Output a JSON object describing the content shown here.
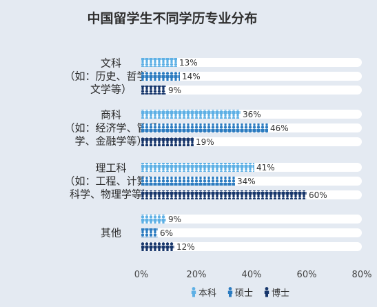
{
  "chart_data": {
    "type": "bar",
    "orientation": "horizontal",
    "title": "中国留学生不同学历专业分布",
    "categories": [
      [
        "文科",
        "（如：历史、哲学、",
        "文学等）"
      ],
      [
        "商科",
        "（如：经济学、管理",
        "学、金融学等）"
      ],
      [
        "理工科",
        "（如：工程、计算机",
        "科学、物理学等）"
      ],
      [
        "其他"
      ]
    ],
    "series": [
      {
        "name": "本科",
        "color": "#5eb0e5",
        "values": [
          13,
          36,
          41,
          9
        ],
        "labels": [
          "13%",
          "36%",
          "41%",
          "9%"
        ]
      },
      {
        "name": "硕士",
        "color": "#2b7bc0",
        "values": [
          14,
          46,
          34,
          6
        ],
        "labels": [
          "14%",
          "46%",
          "34%",
          "6%"
        ]
      },
      {
        "name": "博士",
        "color": "#17366b",
        "values": [
          9,
          19,
          60,
          12
        ],
        "labels": [
          "9%",
          "19%",
          "60%",
          "12%"
        ]
      }
    ],
    "xlim": [
      0,
      80
    ],
    "xticks": [
      "0%",
      "20%",
      "40%",
      "60%",
      "80%"
    ],
    "legend_position": "bottom-right",
    "track_color": "#ffffff",
    "mark_style": "person-pictogram"
  }
}
